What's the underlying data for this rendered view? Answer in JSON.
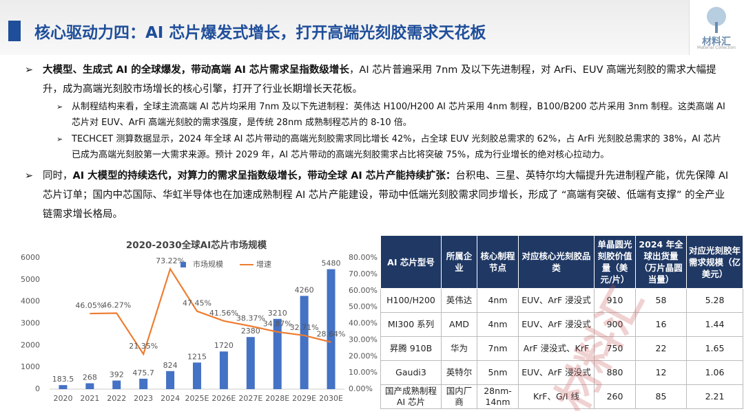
{
  "header": {
    "title": "核心驱动力四：AI 芯片爆发式增长，打开高端光刻胶需求天花板",
    "logo": "材料汇",
    "logo_sub": "Material Collection"
  },
  "bullets": [
    {
      "bold": "大模型、生成式 AI 的全球爆发，带动高端 AI 芯片需求呈指数级增长",
      "text": "，AI 芯片普遍采用 7nm 及以下先进制程，对 ArFi、EUV 高端光刻胶的需求大幅提升，成为高端光刻胶市场增长的核心引擎，打开了行业长期增长天花板。",
      "sub": [
        "从制程结构来看，全球主流高端 AI 芯片均采用 7nm 及以下先进制程：英伟达 H100/H200 AI 芯片采用 4nm 制程，B100/B200 芯片采用 3nm 制程。这类高端 AI 芯片对 EUV、ArFi 高端光刻胶的需求强度，是传统 28nm 成熟制程芯片的 8-10 倍。",
        "TECHCET 测算数据显示，2024 年全球 AI 芯片带动的高端光刻胶需求同比增长 42%，占全球 EUV 光刻胶总需求的 62%，占 ArFi 光刻胶总需求的 38%，AI 芯片已成为高端光刻胶第一大需求来源。预计 2029 年，AI 芯片带动的高端光刻胶需求占比将突破 75%，成为行业增长的绝对核心拉动力。"
      ]
    },
    {
      "lead": "同时，",
      "bold": "AI 大模型的持续迭代，对算力的需求呈指数级增长，带动全球 AI 芯片产能持续扩张：",
      "text": "台积电、三星、英特尔均大幅提升先进制程产能，优先保障 AI 芯片订单；国内中芯国际、华虹半导体也在加速成熟制程 AI 芯片产能建设，带动中低端光刻胶需求同步增长，形成了 “高端有突破、低端有支撑” 的全产业链需求增长格局。"
    }
  ],
  "chart_data": {
    "type": "bar-line",
    "title": "2020-2030全球AI芯片市场规模",
    "categories": [
      "2020",
      "2021",
      "2022",
      "2023",
      "2024",
      "2025E",
      "2026E",
      "2027E",
      "2028E",
      "2029E",
      "2030E"
    ],
    "series": [
      {
        "name": "市场规模",
        "type": "bar",
        "color": "#4472c4",
        "values": [
          183.5,
          268,
          392,
          475.7,
          824,
          1215,
          1720,
          2380,
          3210,
          4260,
          5480
        ]
      },
      {
        "name": "增速",
        "type": "line",
        "axis": "y2",
        "color": "#ed7d31",
        "values": [
          null,
          46.05,
          46.27,
          21.35,
          73.22,
          47.45,
          41.56,
          38.37,
          34.87,
          32.71,
          28.64
        ],
        "value_labels": [
          null,
          "46.05%",
          "46.27%",
          "21.35%",
          "73.22%",
          "47.45%",
          "41.56%",
          "38.37%",
          "34.87%",
          "32.71%",
          "28.64%"
        ]
      }
    ],
    "ylim": [
      0,
      6000
    ],
    "yticks": [
      0,
      1000,
      2000,
      3000,
      4000,
      5000,
      6000
    ],
    "y2lim": [
      0,
      80
    ],
    "y2ticks": [
      {
        "value": 0,
        "label": "0.00%"
      },
      {
        "value": 10,
        "label": "10.00%"
      },
      {
        "value": 20,
        "label": "20.00%"
      },
      {
        "value": 30,
        "label": "30.00%"
      },
      {
        "value": 40,
        "label": "40.00%"
      },
      {
        "value": 50,
        "label": "50.00%"
      },
      {
        "value": 60,
        "label": "60.00%"
      },
      {
        "value": 70,
        "label": "70.00%"
      },
      {
        "value": 80,
        "label": "80.00%"
      }
    ],
    "grid": false,
    "legend": "top"
  },
  "table": {
    "header": [
      "AI 芯片型号",
      "所属企业",
      "核心制程节点",
      "对应核心光刻胶品类",
      "单晶圆光刻胶价值量（美元/片）",
      "2024 年全球出货量（万片晶圆当量）",
      "对应光刻胶年需求规模（亿美元）"
    ],
    "rows": [
      [
        "H100/H200",
        "英伟达",
        "4nm",
        "EUV、ArF 浸没式",
        "910",
        "58",
        "5.28"
      ],
      [
        "MI300 系列",
        "AMD",
        "4nm",
        "EUV、ArF 浸没式",
        "900",
        "16",
        "1.44"
      ],
      [
        "昇腾 910B",
        "华为",
        "7nm",
        "ArF 浸没式、KrF",
        "750",
        "22",
        "1.65"
      ],
      [
        "Gaudi3",
        "英特尔",
        "5nm",
        "EUV、ArF 浸没式",
        "880",
        "12",
        "1.06"
      ],
      [
        "国产成熟制程 AI 芯片",
        "国内厂商",
        "28nm-14nm",
        "KrF、G/I 线",
        "260",
        "85",
        "2.21"
      ]
    ]
  },
  "watermark": "材料汇"
}
